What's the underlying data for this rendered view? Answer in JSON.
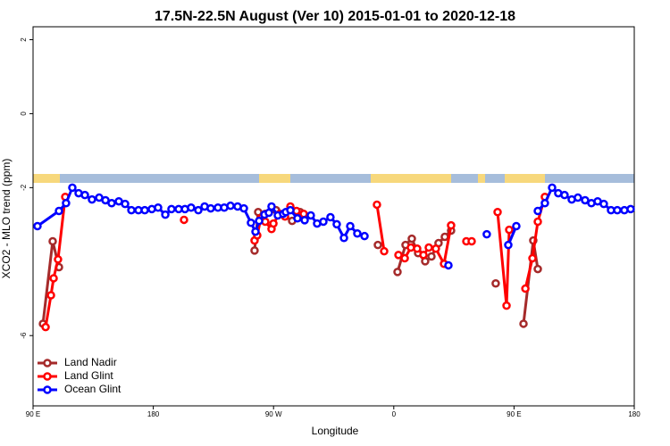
{
  "chart_data": {
    "type": "line",
    "title": "17.5N-22.5N August (Ver 10)   2015-01-01 to 2020-12-18",
    "x_label": "Longitude",
    "y_label": "XCO2 - MLO trend (ppm)",
    "xlim": [
      90,
      540
    ],
    "ylim": [
      -7.9,
      2.35
    ],
    "xticks": [
      {
        "value": 90,
        "label": "90 E"
      },
      {
        "value": 180,
        "label": "180"
      },
      {
        "value": 270,
        "label": "90 W"
      },
      {
        "value": 360,
        "label": "0"
      },
      {
        "value": 450,
        "label": "90 E"
      },
      {
        "value": 540,
        "label": "180"
      }
    ],
    "yticks": [
      2,
      0,
      -2,
      -6
    ],
    "legend": "bottom-left",
    "series": [
      {
        "name": "Land Nadir",
        "color": "#a52a2a",
        "x": [
          97.4,
          104.7,
          109.4,
          null,
          255.8,
          258.5,
          263.8,
          271.9,
          283.9,
          289.9,
          null,
          348.1,
          null,
          362.8,
          368.8,
          373.5,
          378.2,
          383.5,
          388.2,
          393.5,
          398.2,
          402.9,
          null,
          436.3,
          null,
          457.1,
          464.4,
          467.8
        ],
        "values": [
          -5.68,
          -3.45,
          -4.15,
          null,
          -3.7,
          -2.66,
          -2.71,
          -2.61,
          -2.9,
          -2.66,
          null,
          -3.55,
          null,
          -4.28,
          -3.55,
          -3.38,
          -3.77,
          -3.99,
          -3.86,
          -3.5,
          -3.33,
          -3.16,
          null,
          -4.59,
          null,
          -5.68,
          -3.43,
          -4.2
        ]
      },
      {
        "name": "Land Glint",
        "color": "#ff0000",
        "x": [
          99.4,
          103.4,
          105.4,
          108.7,
          114.1,
          null,
          203.0,
          null,
          255.8,
          257.8,
          260.5,
          263.8,
          268.5,
          269.9,
          274.5,
          278.6,
          282.6,
          287.2,
          292.6,
          null,
          347.4,
          352.8,
          null,
          363.5,
          368.2,
          372.8,
          377.5,
          382.2,
          386.2,
          391.5,
          397.6,
          402.9,
          null,
          414.3,
          418.3,
          null,
          437.7,
          444.4,
          446.4,
          null,
          458.5,
          463.8,
          467.8,
          473.1
        ],
        "values": [
          -5.77,
          -4.91,
          -4.45,
          -3.94,
          -2.25,
          null,
          -2.87,
          null,
          -3.43,
          -3.29,
          -2.83,
          -2.92,
          -3.12,
          -2.97,
          -2.71,
          -2.78,
          -2.51,
          -2.63,
          -2.71,
          null,
          -2.46,
          -3.72,
          null,
          -3.82,
          -3.91,
          -3.62,
          -3.65,
          -3.82,
          -3.62,
          -3.65,
          -4.06,
          -3.02,
          null,
          -3.45,
          -3.45,
          null,
          -2.66,
          -5.19,
          -3.14,
          null,
          -4.73,
          -3.91,
          -2.92,
          -2.25
        ]
      },
      {
        "name": "Ocean Glint",
        "color": "#0000ff",
        "x": [
          93.3,
          109.4,
          114.7,
          119.4,
          124.1,
          128.8,
          134.1,
          139.5,
          144.2,
          148.8,
          154.2,
          158.9,
          163.6,
          168.9,
          173.6,
          178.9,
          183.6,
          189.0,
          193.6,
          199.0,
          203.7,
          208.3,
          213.7,
          218.4,
          223.0,
          228.4,
          233.1,
          237.8,
          243.1,
          247.8,
          253.1,
          256.5,
          259.2,
          263.2,
          266.5,
          268.5,
          273.2,
          277.2,
          279.2,
          282.6,
          287.9,
          293.3,
          297.9,
          302.6,
          307.3,
          312.6,
          317.3,
          322.7,
          327.4,
          332.7,
          338.1,
          null,
          400.9,
          null,
          429.6,
          null,
          445.7,
          451.7,
          null,
          467.8,
          473.1,
          478.5,
          483.1,
          487.8,
          493.2,
          497.8,
          503.2,
          507.9,
          512.6,
          517.2,
          522.6,
          527.3,
          532.6,
          537.3
        ],
        "values": [
          -3.04,
          -2.63,
          -2.42,
          -2.0,
          -2.15,
          -2.2,
          -2.32,
          -2.27,
          -2.34,
          -2.42,
          -2.37,
          -2.44,
          -2.61,
          -2.61,
          -2.61,
          -2.58,
          -2.54,
          -2.73,
          -2.58,
          -2.58,
          -2.58,
          -2.54,
          -2.61,
          -2.51,
          -2.56,
          -2.54,
          -2.54,
          -2.49,
          -2.51,
          -2.56,
          -2.95,
          -3.19,
          -2.9,
          -2.73,
          -2.68,
          -2.51,
          -2.75,
          -2.71,
          -2.66,
          -2.61,
          -2.83,
          -2.88,
          -2.75,
          -2.97,
          -2.92,
          -2.8,
          -2.99,
          -3.36,
          -3.04,
          -3.24,
          -3.31,
          null,
          -4.1,
          null,
          -3.26,
          null,
          -3.55,
          -3.04,
          null,
          -2.63,
          -2.42,
          -2.0,
          -2.15,
          -2.2,
          -2.32,
          -2.27,
          -2.34,
          -2.42,
          -2.37,
          -2.44,
          -2.61,
          -2.61,
          -2.61,
          -2.58
        ]
      }
    ]
  }
}
